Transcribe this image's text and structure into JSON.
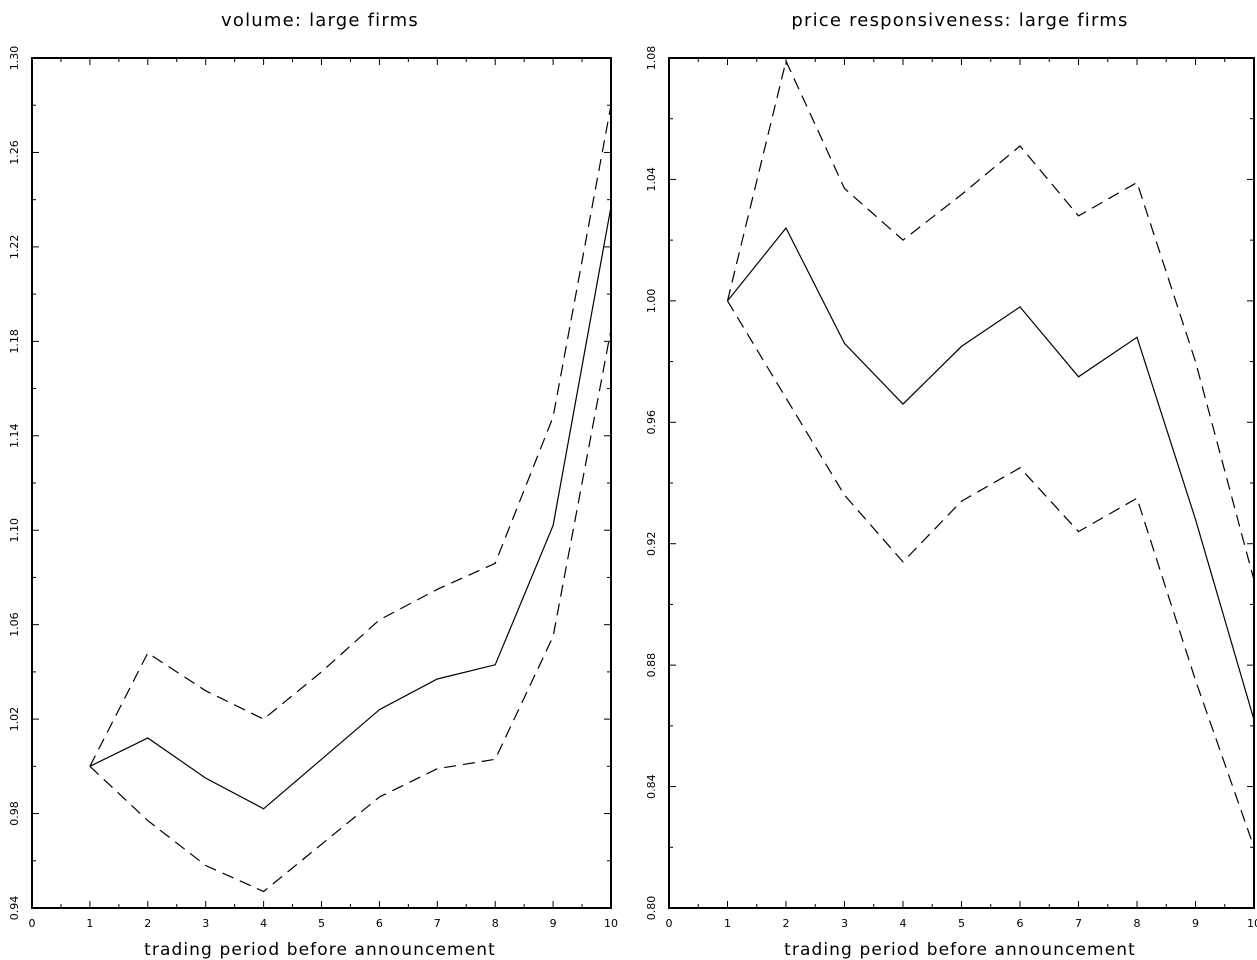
{
  "chart_data": [
    {
      "type": "line",
      "title": "volume: large firms",
      "xlabel": "trading period before announcement",
      "ylabel": "",
      "x": [
        1,
        2,
        3,
        4,
        5,
        6,
        7,
        8,
        9,
        10
      ],
      "xlim": [
        0,
        10
      ],
      "ylim": [
        0.94,
        1.3
      ],
      "xticks": [
        "0",
        "1",
        "2",
        "3",
        "4",
        "5",
        "6",
        "7",
        "8",
        "9",
        "10"
      ],
      "yticks": [
        "0.94",
        "0.98",
        "1.02",
        "1.06",
        "1.10",
        "1.14",
        "1.18",
        "1.22",
        "1.26",
        "1.30"
      ],
      "series": [
        {
          "style": "solid",
          "values": [
            1.0,
            1.012,
            0.995,
            0.982,
            1.003,
            1.024,
            1.037,
            1.043,
            1.102,
            1.237
          ]
        },
        {
          "style": "dashed",
          "values": [
            1.0,
            1.048,
            1.032,
            1.02,
            1.04,
            1.062,
            1.075,
            1.086,
            1.148,
            1.28
          ]
        },
        {
          "style": "dashed",
          "values": [
            1.0,
            0.977,
            0.958,
            0.947,
            0.967,
            0.987,
            0.999,
            1.003,
            1.055,
            1.185
          ]
        }
      ],
      "grid": false
    },
    {
      "type": "line",
      "title": "price responsiveness: large firms",
      "xlabel": "trading period before announcement",
      "ylabel": "",
      "x": [
        1,
        2,
        3,
        4,
        5,
        6,
        7,
        8,
        9,
        10
      ],
      "xlim": [
        0,
        10
      ],
      "ylim": [
        0.8,
        1.08
      ],
      "xticks": [
        "0",
        "1",
        "2",
        "3",
        "4",
        "5",
        "6",
        "7",
        "8",
        "9",
        "10"
      ],
      "yticks": [
        "0.80",
        "0.84",
        "0.88",
        "0.92",
        "0.96",
        "1.00",
        "1.04",
        "1.08"
      ],
      "series": [
        {
          "style": "solid",
          "values": [
            1.0,
            1.024,
            0.986,
            0.966,
            0.985,
            0.998,
            0.975,
            0.988,
            0.928,
            0.862
          ]
        },
        {
          "style": "dashed",
          "values": [
            1.0,
            1.079,
            1.037,
            1.02,
            1.035,
            1.051,
            1.028,
            1.039,
            0.98,
            0.908
          ]
        },
        {
          "style": "dashed",
          "values": [
            1.0,
            0.968,
            0.936,
            0.914,
            0.934,
            0.945,
            0.924,
            0.935,
            0.875,
            0.82
          ]
        }
      ],
      "grid": false
    }
  ]
}
